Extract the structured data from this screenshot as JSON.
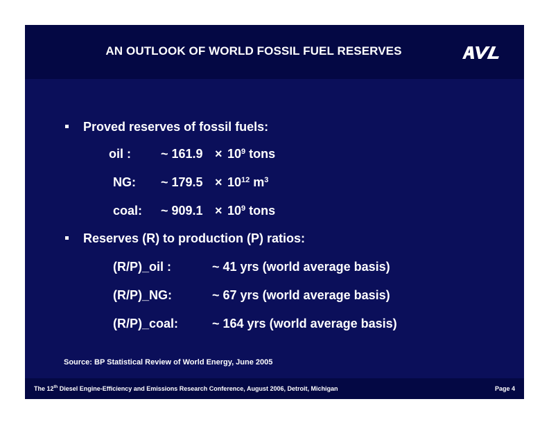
{
  "title": "AN OUTLOOK OF WORLD FOSSIL FUEL RESERVES",
  "logo_text": "AVL",
  "bullets": [
    {
      "text": "Proved reserves of fossil fuels:",
      "rows": [
        {
          "label": "oil :",
          "approx": "~ 161.9",
          "times": "×",
          "base": "10",
          "exp": "9",
          "unit": " tons",
          "unit_exp": ""
        },
        {
          "label": "NG:",
          "approx": "~ 179.5",
          "times": "×",
          "base": "10",
          "exp": "12",
          "unit": " m",
          "unit_exp": "3"
        },
        {
          "label": "coal:",
          "approx": "~ 909.1",
          "times": "×",
          "base": "10",
          "exp": "9",
          "unit": " tons",
          "unit_exp": ""
        }
      ]
    },
    {
      "text": "Reserves (R) to production (P) ratios:",
      "rows": [
        {
          "label": "(R/P)_oil :",
          "value": "~ 41 yrs (world average basis)"
        },
        {
          "label": "(R/P)_NG:",
          "value": "~ 67 yrs (world average basis)"
        },
        {
          "label": "(R/P)_coal:",
          "value": "~ 164 yrs (world average basis)"
        }
      ]
    }
  ],
  "source": "Source: BP Statistical Review of World Energy, June 2005",
  "footer": {
    "prefix": "The 12",
    "sup": "th",
    "rest": " Diesel Engine-Efficiency and Emissions Research Conference, August 2006, Detroit, Michigan",
    "page": "Page 4"
  }
}
